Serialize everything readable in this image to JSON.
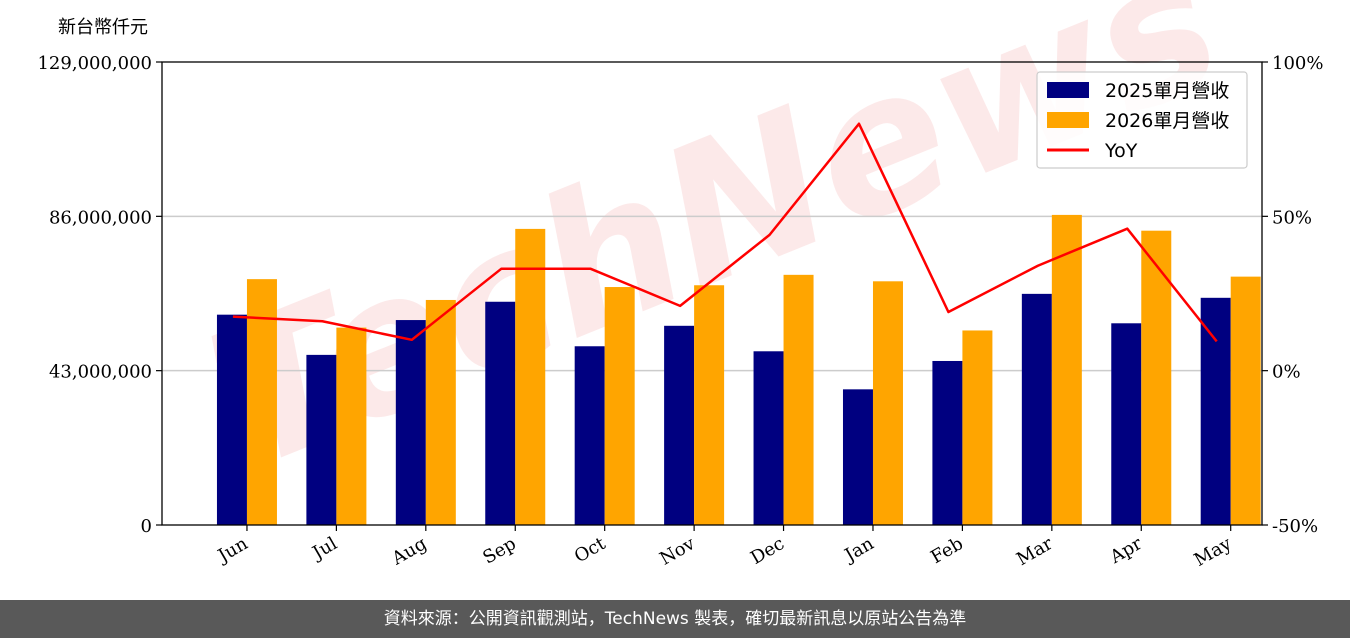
{
  "chart_data": {
    "type": "bar",
    "unit_label": "新台幣仟元",
    "categories": [
      "Jun",
      "Jul",
      "Aug",
      "Sep",
      "Oct",
      "Nov",
      "Dec",
      "Jan",
      "Feb",
      "Mar",
      "Apr",
      "May"
    ],
    "series": [
      {
        "name": "2025單月營收",
        "type": "bar",
        "axis": "left",
        "color": "#000080",
        "values": [
          58600000,
          47400000,
          57100000,
          62200000,
          49800000,
          55500000,
          48400000,
          37800000,
          45700000,
          64400000,
          56200000,
          63300000
        ]
      },
      {
        "name": "2026單月營收",
        "type": "bar",
        "axis": "left",
        "color": "#FFA500",
        "values": [
          68500000,
          55000000,
          62700000,
          82500000,
          66300000,
          66800000,
          69700000,
          67900000,
          54200000,
          86400000,
          82000000,
          69200000
        ]
      },
      {
        "name": "YoY",
        "type": "line",
        "axis": "right",
        "color": "#FF0000",
        "values": [
          17.5,
          16,
          10,
          33,
          33,
          21,
          44,
          80,
          19,
          34,
          46,
          9.5
        ]
      }
    ],
    "y_left": {
      "ylim": [
        0,
        129000000
      ],
      "ticks": [
        0,
        43000000,
        86000000,
        129000000
      ],
      "tick_labels": [
        "0",
        "43,000,000",
        "86,000,000",
        "129,000,000"
      ]
    },
    "y_right": {
      "ylim": [
        -50,
        100
      ],
      "ticks": [
        -50,
        0,
        50,
        100
      ],
      "tick_labels": [
        "-50%",
        "0%",
        "50%",
        "100%"
      ]
    },
    "grid": "horizontal",
    "legend": "top-right"
  },
  "watermark": {
    "text": "TechNews",
    "color": "#f4a0a0"
  },
  "footer": {
    "source_text": "資料來源：公開資訊觀測站，TechNews 製表，確切最新訊息以原站公告為準"
  }
}
